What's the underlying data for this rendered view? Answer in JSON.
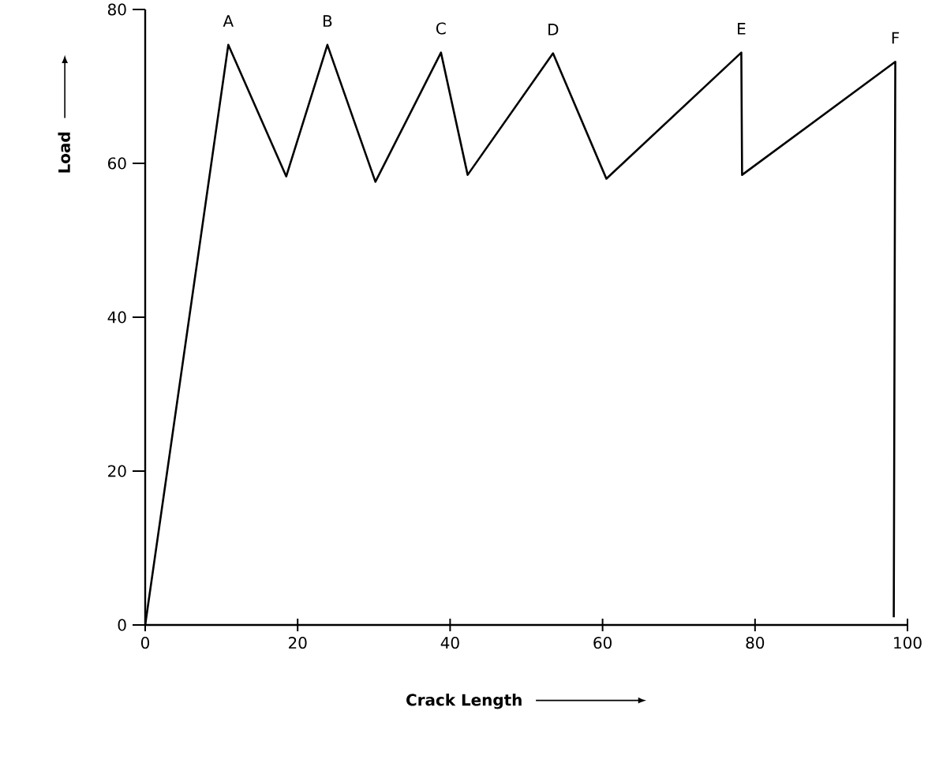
{
  "chart_data": {
    "type": "line",
    "xlabel": "Crack Length",
    "ylabel": "Load",
    "x": [
      0,
      10.9,
      18.5,
      23.9,
      30.2,
      38.8,
      42.3,
      53.5,
      60.5,
      78.2,
      78.3,
      98.4,
      98.2
    ],
    "values": [
      0,
      75.4,
      58.3,
      75.4,
      57.6,
      74.4,
      58.5,
      74.3,
      58.0,
      74.4,
      58.5,
      73.2,
      1
    ],
    "color": "#000000",
    "xlim": [
      0,
      100
    ],
    "ylim": [
      0,
      80
    ],
    "xticks": [
      0,
      20,
      40,
      60,
      80,
      100
    ],
    "yticks": [
      0,
      20,
      40,
      60,
      80
    ],
    "annotations": [
      {
        "text": "A",
        "x": 10.9,
        "y": 75.4
      },
      {
        "text": "B",
        "x": 23.9,
        "y": 75.4
      },
      {
        "text": "C",
        "x": 38.8,
        "y": 74.4
      },
      {
        "text": "D",
        "x": 53.5,
        "y": 74.3
      },
      {
        "text": "E",
        "x": 78.2,
        "y": 74.4
      },
      {
        "text": "F",
        "x": 98.4,
        "y": 73.2
      }
    ]
  }
}
